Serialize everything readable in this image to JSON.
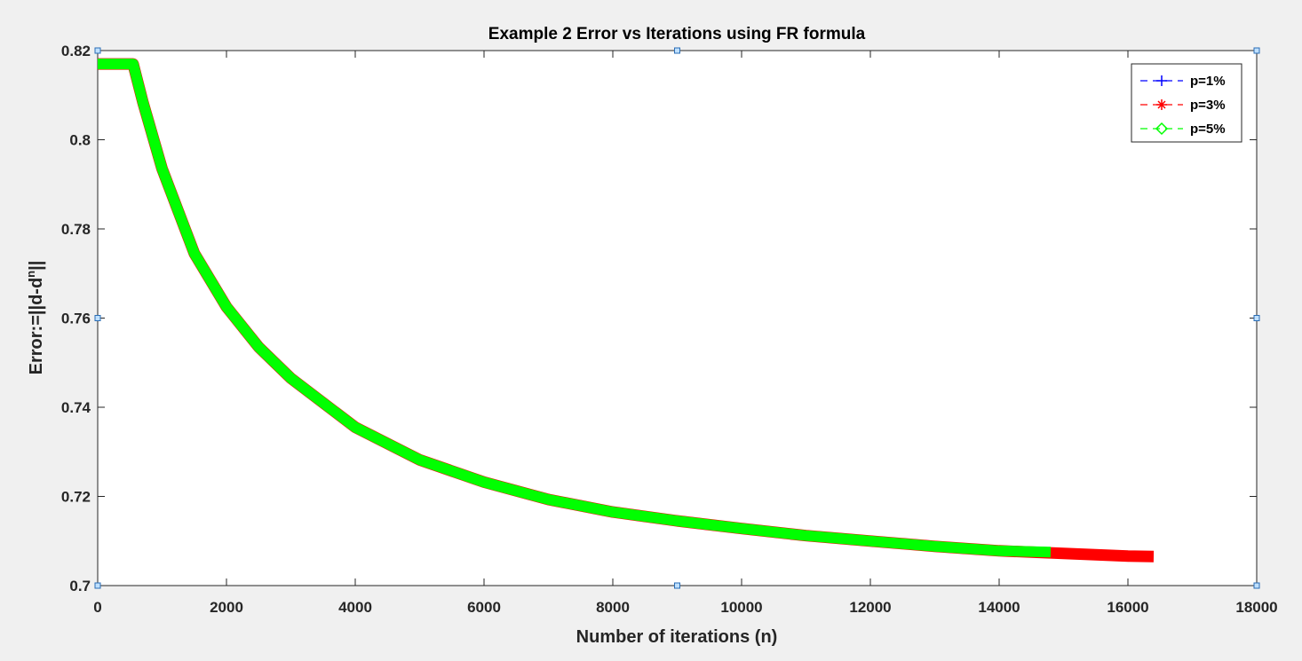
{
  "chart_data": {
    "type": "line",
    "title": "Example 2 Error vs Iterations using FR formula",
    "xlabel": "Number of iterations (n)",
    "ylabel_parts": [
      "Error:=||d-d",
      "n",
      "||"
    ],
    "xlim": [
      0,
      18000
    ],
    "ylim": [
      0.7,
      0.82
    ],
    "xticks": [
      0,
      2000,
      4000,
      6000,
      8000,
      10000,
      12000,
      14000,
      16000,
      18000
    ],
    "yticks": [
      0.7,
      0.72,
      0.74,
      0.76,
      0.78,
      0.8,
      0.82
    ],
    "xtick_labels": [
      "0",
      "2000",
      "4000",
      "6000",
      "8000",
      "10000",
      "12000",
      "14000",
      "16000",
      "18000"
    ],
    "ytick_labels": [
      "0.7",
      "0.72",
      "0.74",
      "0.76",
      "0.78",
      "0.8",
      "0.82"
    ],
    "grid": false,
    "legend_position": "top-right",
    "series": [
      {
        "name": "p=1%",
        "color": "#0000ff",
        "marker": "+",
        "line_style": "dashed",
        "x": [
          0,
          550,
          700,
          1000,
          1500,
          2000,
          2500,
          3000,
          4000,
          5000,
          6000,
          7000,
          8000,
          9000,
          10000,
          11000,
          12000,
          13000,
          14000,
          14800
        ],
        "y": [
          0.817,
          0.817,
          0.8085,
          0.7935,
          0.7745,
          0.7625,
          0.7535,
          0.7465,
          0.7355,
          0.7282,
          0.7232,
          0.7193,
          0.7165,
          0.7145,
          0.7128,
          0.7112,
          0.71,
          0.7088,
          0.7078,
          0.7075
        ]
      },
      {
        "name": "p=3%",
        "color": "#ff0000",
        "marker": "*",
        "line_style": "dashed",
        "x": [
          0,
          550,
          700,
          1000,
          1500,
          2000,
          2500,
          3000,
          4000,
          5000,
          6000,
          7000,
          8000,
          9000,
          10000,
          11000,
          12000,
          13000,
          14000,
          15000,
          16000,
          16400
        ],
        "y": [
          0.817,
          0.817,
          0.8085,
          0.7935,
          0.7745,
          0.7625,
          0.7535,
          0.7465,
          0.7355,
          0.7282,
          0.7232,
          0.7193,
          0.7165,
          0.7145,
          0.7128,
          0.7112,
          0.71,
          0.7088,
          0.7078,
          0.7072,
          0.7066,
          0.7065
        ]
      },
      {
        "name": "p=5%",
        "color": "#00ff00",
        "marker": "diamond",
        "line_style": "dashed",
        "x": [
          0,
          550,
          700,
          1000,
          1500,
          2000,
          2500,
          3000,
          4000,
          5000,
          6000,
          7000,
          8000,
          9000,
          10000,
          11000,
          12000,
          13000,
          14000,
          14800
        ],
        "y": [
          0.817,
          0.817,
          0.8085,
          0.7935,
          0.7745,
          0.7625,
          0.7535,
          0.7465,
          0.7355,
          0.7282,
          0.7232,
          0.7193,
          0.7165,
          0.7145,
          0.7128,
          0.7112,
          0.71,
          0.7088,
          0.7078,
          0.7075
        ]
      }
    ]
  }
}
